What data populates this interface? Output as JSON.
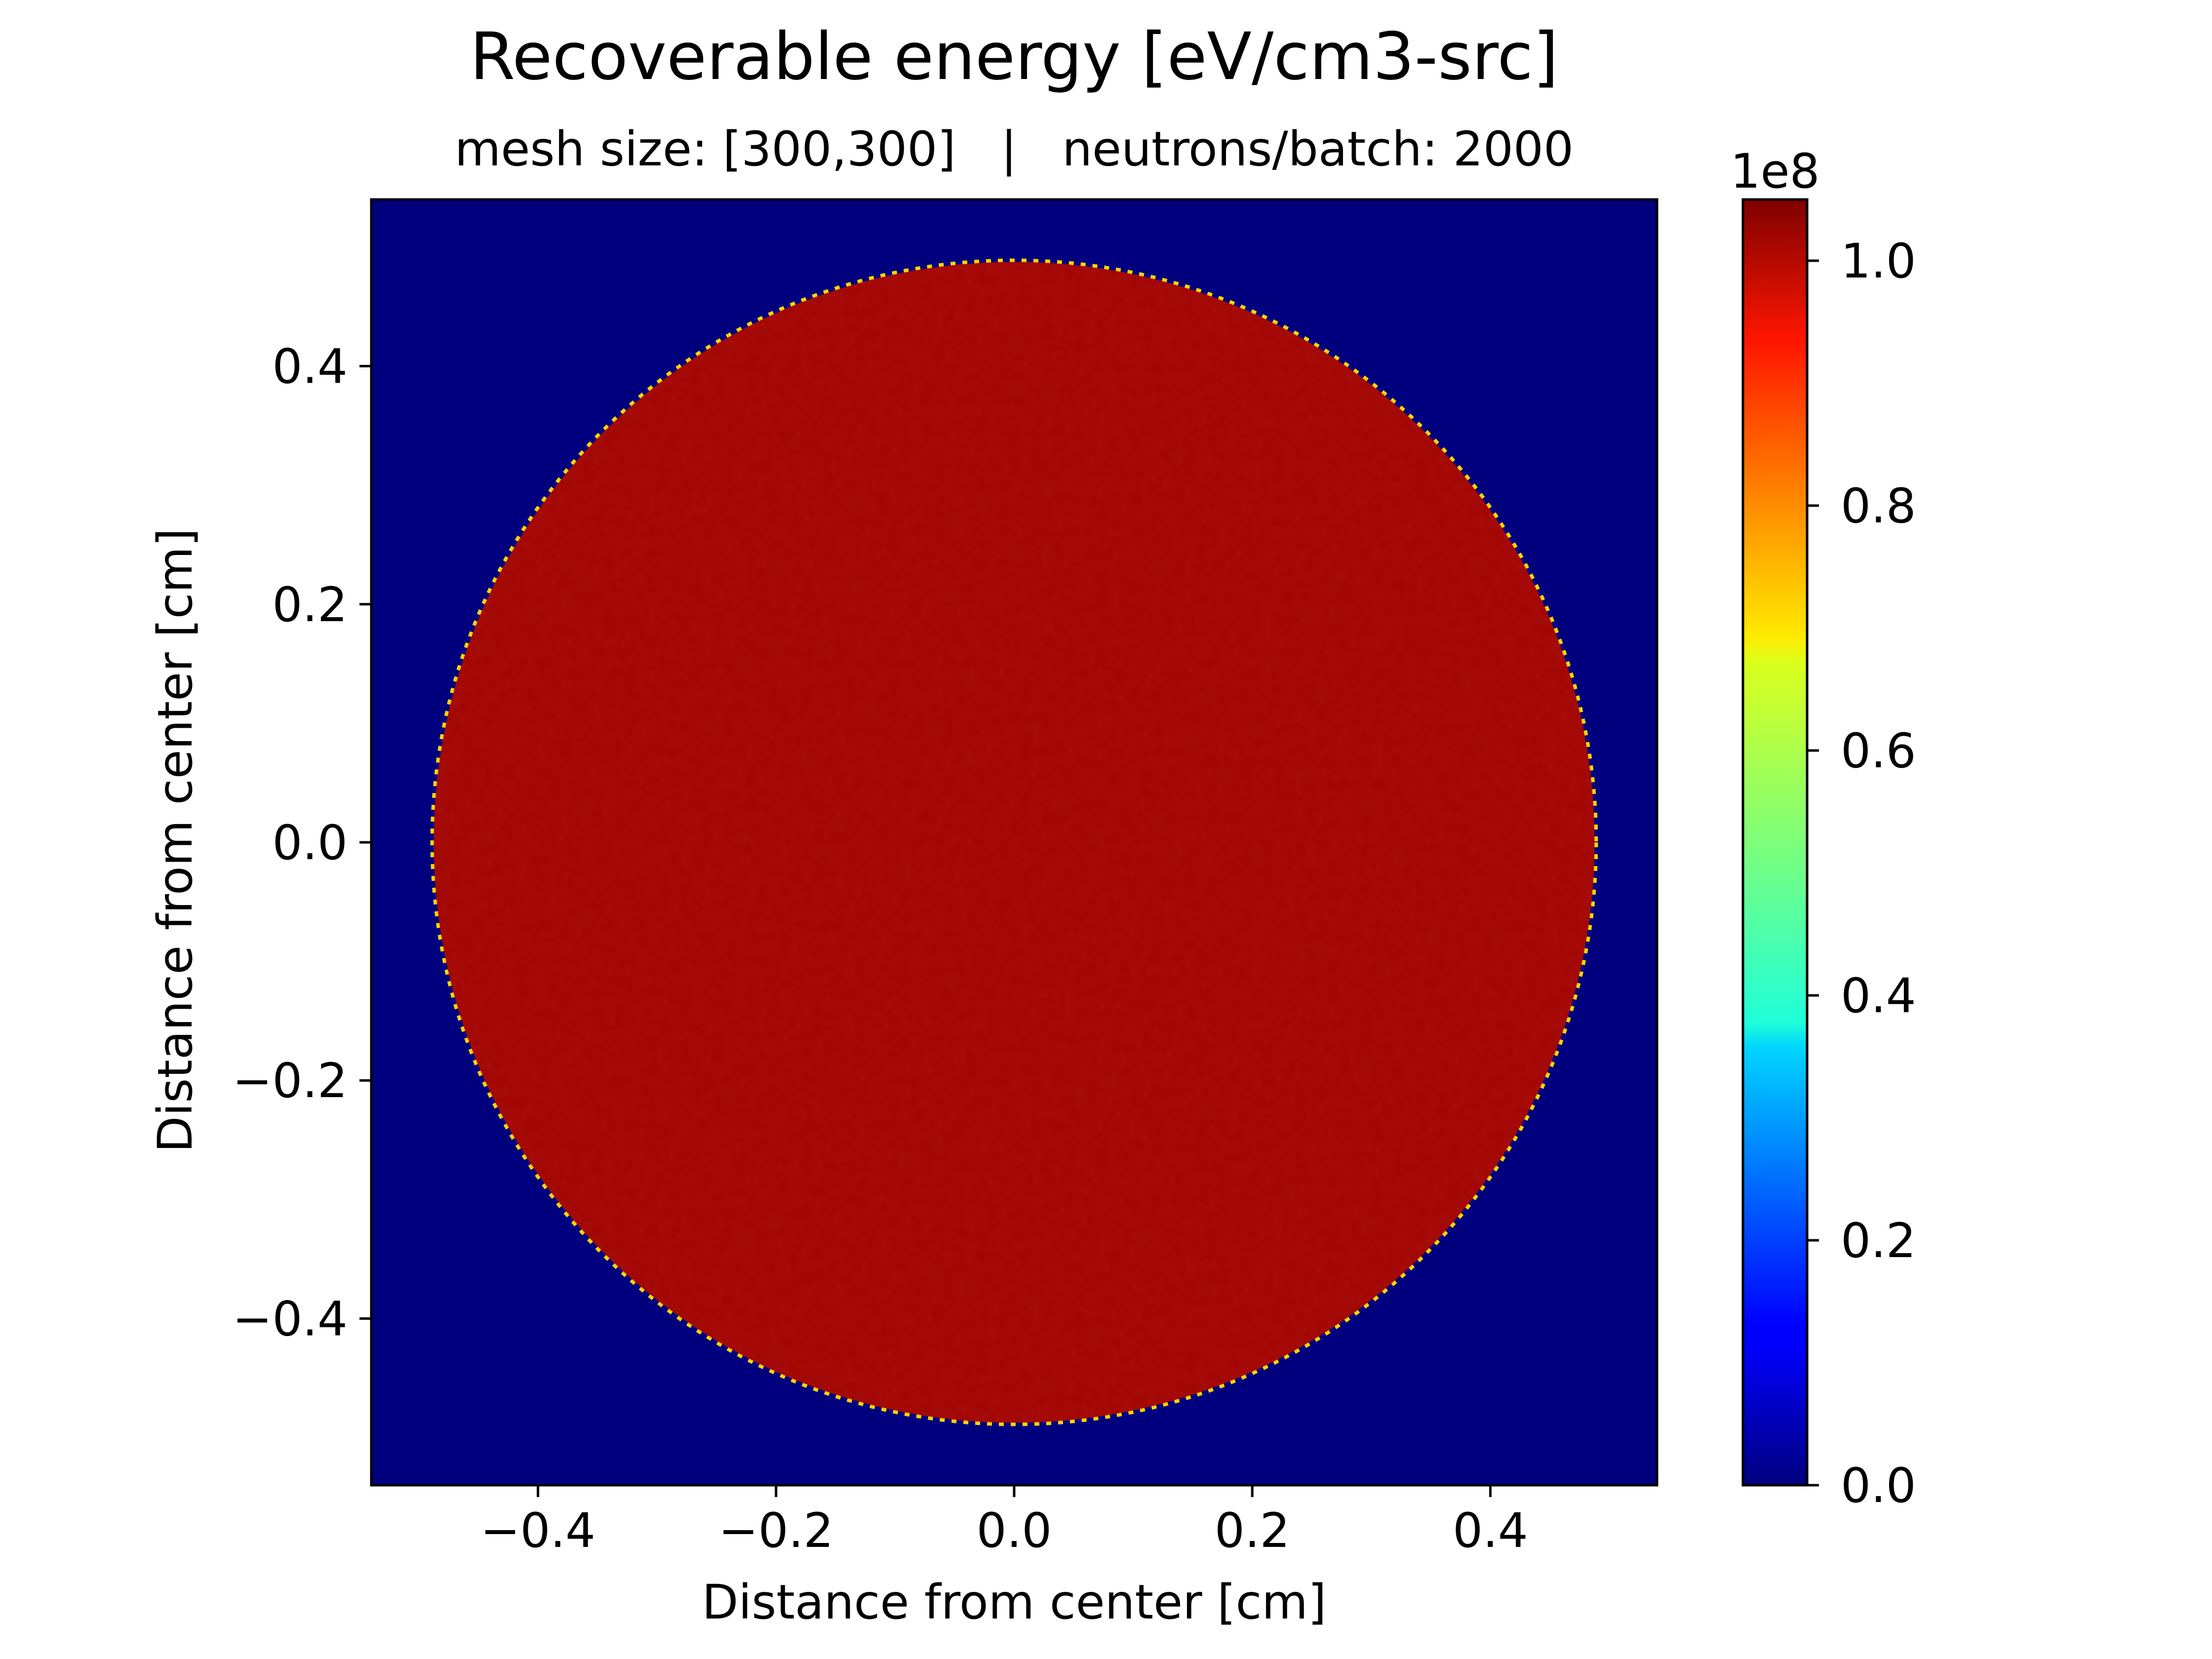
{
  "chart_data": {
    "type": "heatmap",
    "title": "Recoverable energy [eV/cm3-src]",
    "subtitle": "mesh size: [300,300]   |   neutrons/batch: 2000",
    "xlabel": "Distance from center [cm]",
    "ylabel": "Distance from center [cm]",
    "xlim": [
      -0.54,
      0.54
    ],
    "ylim": [
      -0.54,
      0.54
    ],
    "xticks": [
      -0.4,
      -0.2,
      0.0,
      0.2,
      0.4
    ],
    "yticks": [
      -0.4,
      -0.2,
      0.0,
      0.2,
      0.4
    ],
    "xtick_labels": [
      "−0.4",
      "−0.2",
      "0.0",
      "0.2",
      "0.4"
    ],
    "ytick_labels": [
      "−0.4",
      "−0.2",
      "0.0",
      "0.2",
      "0.4"
    ],
    "colormap": "jet",
    "colorbar": {
      "min": 0.0,
      "max": 1.05,
      "multiplier_label": "1e8",
      "ticks": [
        0.0,
        0.2,
        0.4,
        0.6,
        0.8,
        1.0
      ],
      "tick_labels": [
        "0.0",
        "0.2",
        "0.4",
        "0.6",
        "0.8",
        "1.0"
      ]
    },
    "field": {
      "shape": "circle",
      "center": [
        0.0,
        0.0
      ],
      "radius": 0.4875,
      "inside_value": 1.03,
      "outside_value": 0.0
    },
    "colors": {
      "background": "#00007f",
      "fill": "#a50b07",
      "fill_dark": "#960605",
      "fill_light": "#b31808"
    }
  }
}
